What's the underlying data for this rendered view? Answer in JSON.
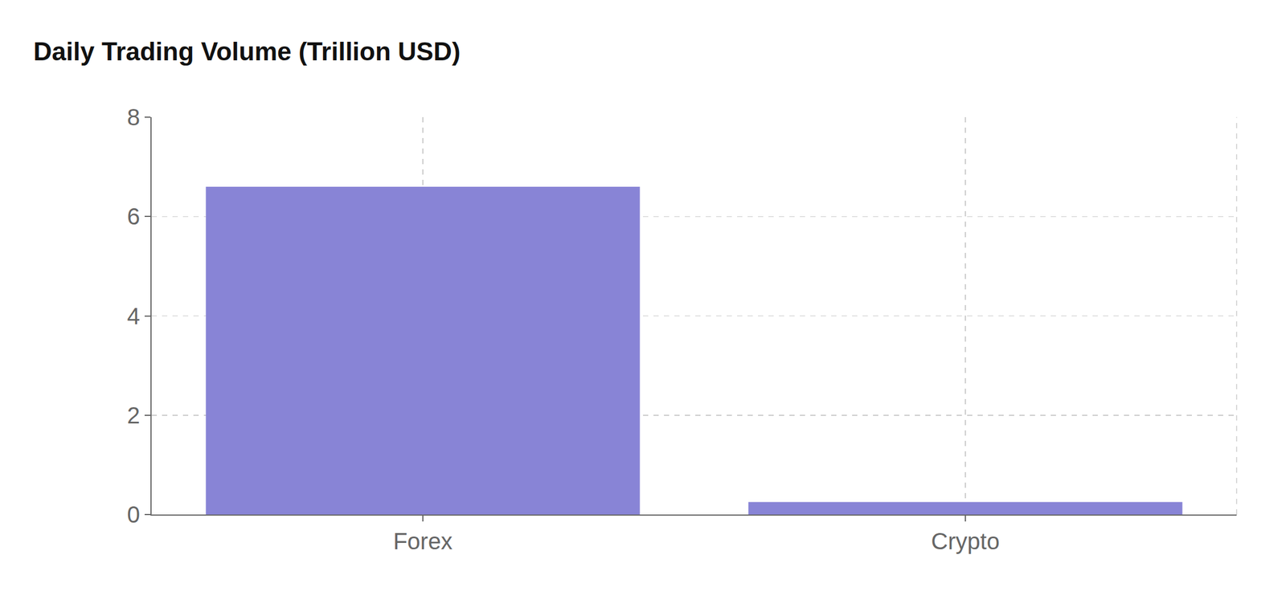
{
  "chart_data": {
    "type": "bar",
    "title": "Daily Trading Volume (Trillion USD)",
    "categories": [
      "Forex",
      "Crypto"
    ],
    "values": [
      6.6,
      0.25
    ],
    "color": "#8884d6",
    "ylim": [
      0,
      8
    ],
    "yticks": [
      0,
      2,
      4,
      6,
      8
    ],
    "grid": true
  }
}
